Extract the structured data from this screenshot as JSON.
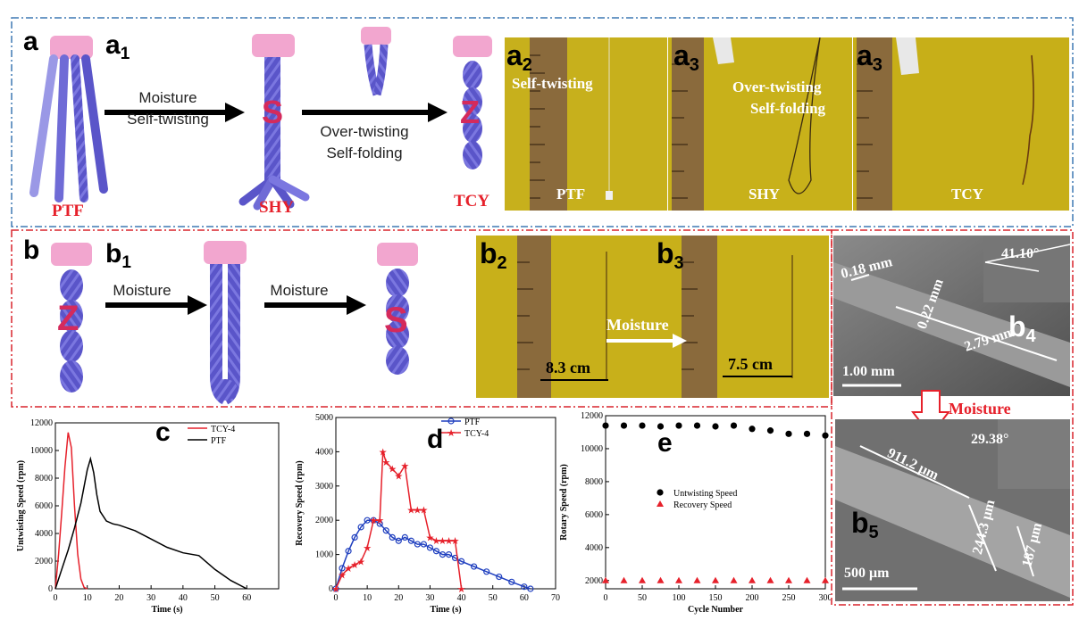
{
  "panel_a": {
    "letter": "a",
    "sub_letter": "a",
    "sub_index": "1",
    "step1_line1": "Moisture",
    "step1_line2": "Self-twisting",
    "step2_line1": "Over-twisting",
    "step2_line2": "Self-folding",
    "label_ptf": "PTF",
    "label_shy": "SHY",
    "label_tcy": "TCY",
    "photos": [
      {
        "letter": "a",
        "index": "2",
        "caption": "Self-twisting",
        "caption2": "",
        "bottom": "PTF"
      },
      {
        "letter": "a",
        "index": "3",
        "caption": "Over-twisting",
        "caption2": "Self-folding",
        "bottom": "SHY"
      },
      {
        "letter": "a",
        "index": "3",
        "caption": "",
        "caption2": "",
        "bottom": "TCY"
      }
    ]
  },
  "panel_b": {
    "letter": "b",
    "sub_letter": "b",
    "sub_index": "1",
    "arrow1": "Moisture",
    "arrow2": "Moisture",
    "photo_b2": {
      "letter": "b",
      "index": "2",
      "length": "8.3 cm"
    },
    "photo_b3": {
      "letter": "b",
      "index": "3",
      "length": "7.5 cm"
    },
    "photo_arrow": "Moisture",
    "sem_b4": {
      "letter": "b",
      "index": "4",
      "d1": "0.18 mm",
      "d2": "0.22 mm",
      "d3": "2.79 mm",
      "angle": "41.10°",
      "scale": "1.00 mm"
    },
    "between_arrow": "Moisture",
    "sem_b5": {
      "letter": "b",
      "index": "5",
      "d1": "911.2 μm",
      "d2": "244.3 μm",
      "d3": "187 μm",
      "angle": "29.38°",
      "scale": "500 μm"
    }
  },
  "colors": {
    "blue_frame": "#3f78b4",
    "red_frame": "#d8252d",
    "red_text": "#e6212b",
    "yarn": "#5a55c9",
    "clamp": "#f2a6cf",
    "photo_bg": "#c9b11a"
  },
  "chart_c": {
    "letter": "c",
    "chart_data": {
      "type": "line",
      "xlabel": "Time (s)",
      "ylabel": "Untwisting Speed (rpm)",
      "xlim": [
        0,
        70
      ],
      "ylim": [
        0,
        12000
      ],
      "xticks": [
        "0",
        "10",
        "20",
        "30",
        "40",
        "50",
        "60"
      ],
      "yticks": [
        "0",
        "2000",
        "4000",
        "6000",
        "8000",
        "10000",
        "12000"
      ],
      "legend_position": "top-right",
      "series": [
        {
          "name": "TCY-4",
          "color": "#e6212b",
          "x": [
            0,
            1,
            2,
            3,
            4,
            5,
            6,
            7,
            8,
            9,
            10
          ],
          "y": [
            0,
            2500,
            5500,
            8800,
            11300,
            10200,
            6000,
            2500,
            700,
            100,
            0
          ]
        },
        {
          "name": "PTF",
          "color": "#000000",
          "x": [
            0,
            2,
            4,
            6,
            8,
            10,
            11,
            12,
            13,
            14,
            16,
            18,
            20,
            25,
            30,
            35,
            40,
            45,
            50,
            55,
            60
          ],
          "y": [
            0,
            1400,
            2800,
            4400,
            6200,
            8600,
            9400,
            8400,
            6800,
            5600,
            4900,
            4700,
            4600,
            4200,
            3600,
            3000,
            2600,
            2400,
            1400,
            600,
            0
          ]
        }
      ]
    }
  },
  "chart_d": {
    "letter": "d",
    "chart_data": {
      "type": "line",
      "xlabel": "Time (s)",
      "ylabel": "Recovery Speed (rpm)",
      "xlim": [
        0,
        70
      ],
      "ylim": [
        0,
        5000
      ],
      "xticks": [
        "0",
        "10",
        "20",
        "30",
        "40",
        "50",
        "60",
        "70"
      ],
      "yticks": [
        "0",
        "1000",
        "2000",
        "3000",
        "4000",
        "5000"
      ],
      "legend_position": "top-right",
      "series": [
        {
          "name": "PTF",
          "color": "#1f3fbf",
          "marker": "circle",
          "x": [
            0,
            2,
            4,
            6,
            8,
            10,
            12,
            14,
            16,
            18,
            20,
            22,
            24,
            26,
            28,
            30,
            32,
            34,
            36,
            38,
            40,
            44,
            48,
            52,
            56,
            60,
            62
          ],
          "y": [
            0,
            600,
            1100,
            1500,
            1800,
            2000,
            2000,
            1900,
            1700,
            1500,
            1400,
            1500,
            1400,
            1300,
            1300,
            1200,
            1100,
            1000,
            1000,
            900,
            800,
            650,
            500,
            350,
            200,
            60,
            0
          ]
        },
        {
          "name": "TCY-4",
          "color": "#e6212b",
          "marker": "star",
          "x": [
            0,
            2,
            4,
            6,
            8,
            10,
            12,
            14,
            15,
            16,
            18,
            20,
            22,
            24,
            26,
            28,
            30,
            32,
            34,
            36,
            38,
            40
          ],
          "y": [
            0,
            400,
            600,
            700,
            800,
            1200,
            2000,
            2000,
            4000,
            3700,
            3500,
            3300,
            3600,
            2300,
            2300,
            2300,
            1500,
            1400,
            1400,
            1400,
            1400,
            0
          ]
        }
      ]
    }
  },
  "chart_e": {
    "letter": "e",
    "chart_data": {
      "type": "scatter",
      "xlabel": "Cycle Number",
      "ylabel": "Rotary Speed (rpm)",
      "xlim": [
        0,
        300
      ],
      "ylim": [
        1500,
        12000
      ],
      "xticks": [
        "0",
        "50",
        "100",
        "150",
        "200",
        "250",
        "300"
      ],
      "yticks": [
        "2000",
        "4000",
        "6000",
        "8000",
        "10000",
        "12000"
      ],
      "legend_position": "center",
      "series": [
        {
          "name": "Untwisting Speed",
          "color": "#000000",
          "marker": "circle",
          "x": [
            0,
            25,
            50,
            75,
            100,
            125,
            150,
            175,
            200,
            225,
            250,
            275,
            300
          ],
          "y": [
            11400,
            11400,
            11400,
            11350,
            11400,
            11400,
            11350,
            11400,
            11200,
            11100,
            10900,
            10900,
            10800
          ]
        },
        {
          "name": "Recovery Speed",
          "color": "#e6212b",
          "marker": "triangle",
          "x": [
            0,
            25,
            50,
            75,
            100,
            125,
            150,
            175,
            200,
            225,
            250,
            275,
            300
          ],
          "y": [
            2000,
            2000,
            2000,
            2000,
            2000,
            2000,
            2000,
            2000,
            2000,
            2000,
            2000,
            2000,
            2000
          ]
        }
      ]
    }
  }
}
